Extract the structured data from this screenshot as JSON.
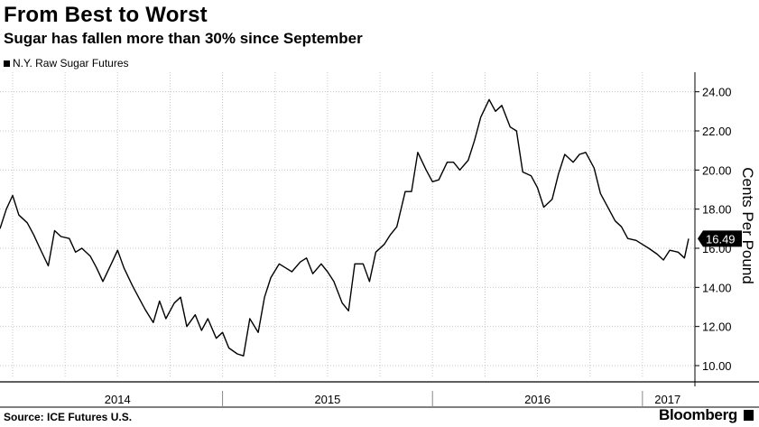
{
  "header": {
    "title": "From Best to Worst",
    "subtitle": "Sugar has fallen more than 30% since September"
  },
  "footer": {
    "source": "Source: ICE Futures U.S.",
    "brand": "Bloomberg"
  },
  "chart_data": {
    "type": "line",
    "title": "From Best to Worst",
    "subtitle": "Sugar has fallen more than 30% since September",
    "ylabel": "Cents Per Pound",
    "ylim": [
      9.4,
      25
    ],
    "yticks": [
      10,
      12,
      14,
      16,
      18,
      20,
      22,
      24
    ],
    "ytick_labels": [
      "10.00",
      "12.00",
      "14.00",
      "16.00",
      "18.00",
      "20.00",
      "22.00",
      "24.00"
    ],
    "xlim": [
      2013.94,
      2017.25
    ],
    "x_year_labels": [
      {
        "label": "2014",
        "x": 2014.5
      },
      {
        "label": "2015",
        "x": 2015.5
      },
      {
        "label": "2016",
        "x": 2016.5
      },
      {
        "label": "2017",
        "x": 2017.12
      }
    ],
    "x_year_boundaries": [
      2015,
      2016,
      2017
    ],
    "grid": true,
    "legend_position": "top-left",
    "last_value_label": "16.49",
    "series": [
      {
        "name": "N.Y. Raw Sugar Futures",
        "color": "#000000",
        "x": [
          2013.94,
          2013.97,
          2014.0,
          2014.03,
          2014.07,
          2014.1,
          2014.13,
          2014.17,
          2014.2,
          2014.23,
          2014.27,
          2014.3,
          2014.33,
          2014.37,
          2014.4,
          2014.43,
          2014.47,
          2014.5,
          2014.53,
          2014.57,
          2014.6,
          2014.63,
          2014.67,
          2014.7,
          2014.73,
          2014.77,
          2014.8,
          2014.83,
          2014.87,
          2014.9,
          2014.93,
          2014.97,
          2015.0,
          2015.03,
          2015.07,
          2015.1,
          2015.13,
          2015.17,
          2015.2,
          2015.23,
          2015.27,
          2015.3,
          2015.33,
          2015.37,
          2015.4,
          2015.43,
          2015.47,
          2015.5,
          2015.53,
          2015.57,
          2015.6,
          2015.63,
          2015.67,
          2015.7,
          2015.73,
          2015.77,
          2015.8,
          2015.83,
          2015.87,
          2015.9,
          2015.93,
          2015.97,
          2016.0,
          2016.03,
          2016.07,
          2016.1,
          2016.13,
          2016.17,
          2016.2,
          2016.23,
          2016.27,
          2016.3,
          2016.33,
          2016.37,
          2016.4,
          2016.43,
          2016.47,
          2016.5,
          2016.53,
          2016.57,
          2016.6,
          2016.63,
          2016.67,
          2016.7,
          2016.73,
          2016.77,
          2016.8,
          2016.83,
          2016.87,
          2016.9,
          2016.93,
          2016.97,
          2017.0,
          2017.03,
          2017.07,
          2017.1,
          2017.13,
          2017.17,
          2017.2,
          2017.22
        ],
        "y": [
          17.0,
          18.0,
          18.7,
          17.7,
          17.3,
          16.7,
          16.0,
          15.1,
          16.9,
          16.6,
          16.5,
          15.8,
          16.0,
          15.6,
          15.0,
          14.3,
          15.2,
          15.9,
          15.0,
          14.1,
          13.5,
          12.9,
          12.2,
          13.3,
          12.4,
          13.2,
          13.5,
          12.0,
          12.6,
          11.8,
          12.4,
          11.4,
          11.7,
          10.9,
          10.6,
          10.5,
          12.4,
          11.7,
          13.5,
          14.5,
          15.2,
          15.0,
          14.8,
          15.3,
          15.5,
          14.7,
          15.2,
          14.8,
          14.3,
          13.2,
          12.8,
          15.2,
          15.2,
          14.3,
          15.8,
          16.2,
          16.7,
          17.1,
          18.9,
          18.9,
          20.9,
          20.0,
          19.4,
          19.5,
          20.4,
          20.4,
          20.0,
          20.5,
          21.5,
          22.7,
          23.6,
          23.0,
          23.3,
          22.2,
          22.0,
          19.9,
          19.7,
          19.1,
          18.1,
          18.5,
          19.8,
          20.8,
          20.4,
          20.8,
          20.9,
          20.1,
          18.8,
          18.2,
          17.4,
          17.1,
          16.5,
          16.4,
          16.2,
          16.0,
          15.7,
          15.4,
          15.9,
          15.8,
          15.5,
          16.49
        ]
      }
    ]
  }
}
